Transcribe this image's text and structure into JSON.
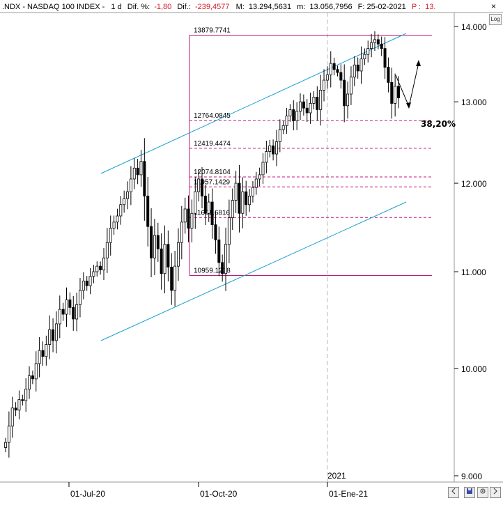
{
  "header": {
    "symbol": ".NDX - NASDAQ 100 INDEX -",
    "period": "1 d",
    "dif_pct_label": "Dif. %:",
    "dif_pct_value": "-1,80",
    "dif_label": "Dif.:",
    "dif_value": "-239,4577",
    "max_label": "M:",
    "max_value": "13.294,5631",
    "min_label": "m:",
    "min_value": "13.056,7956",
    "date_label": "F: 25-02-2021",
    "price_label": "P :",
    "price_value": "13."
  },
  "toolbar": {
    "log_label": "Log",
    "close_glyph": "×",
    "buttons": [
      "save-icon",
      "settings-icon"
    ]
  },
  "colors": {
    "candle": "#000000",
    "channel": "#1aa0d0",
    "fib_line": "#c0177a",
    "grid": "#b8b8b8",
    "header_red": "#d0202a"
  },
  "chart_data": {
    "type": "candlestick",
    "y_axis": {
      "ticks": [
        "14.000",
        "13.000",
        "12.000",
        "11.000",
        "10.000",
        "9.000"
      ],
      "ylim": [
        8950,
        14150
      ],
      "scale": "log"
    },
    "x_axis": {
      "ticks": [
        "01-Jul-20",
        "01-Oct-20",
        "01-Ene-21"
      ],
      "year_marker": "2021"
    },
    "fibonacci": {
      "high": 13879.7741,
      "low": 10959.1208,
      "levels": [
        {
          "label": "13879.7741",
          "value": 13879.7741
        },
        {
          "label": "12764.0845",
          "value": 12764.0845
        },
        {
          "label": "12419.4474",
          "value": 12419.4474
        },
        {
          "label": "12074.8104",
          "value": 12074.8104
        },
        {
          "label": "11957.1429",
          "value": 11957.1429
        },
        {
          "label": "11601.6816",
          "value": 11601.6816
        },
        {
          "label": "10959.1208",
          "value": 10959.1208
        }
      ],
      "highlight_pct": "38,20%"
    },
    "closes": [
      9300,
      9450,
      9620,
      9600,
      9700,
      9690,
      9800,
      9930,
      9900,
      10050,
      10180,
      10120,
      10240,
      10390,
      10280,
      10450,
      10600,
      10550,
      10700,
      10620,
      10500,
      10650,
      10800,
      10900,
      10850,
      10950,
      11000,
      11060,
      11020,
      11150,
      11320,
      11480,
      11550,
      11620,
      11750,
      11820,
      11900,
      12050,
      12180,
      12100,
      12260,
      11850,
      11500,
      11150,
      11400,
      11250,
      10980,
      11300,
      11050,
      10800,
      11060,
      11320,
      11550,
      11700,
      11480,
      11650,
      11900,
      12050,
      11850,
      11650,
      11780,
      11520,
      11350,
      11100,
      10980,
      11300,
      11600,
      11800,
      12000,
      11650,
      11900,
      11750,
      11850,
      11950,
      12050,
      12100,
      12250,
      12380,
      12450,
      12350,
      12500,
      12650,
      12700,
      12820,
      12900,
      12760,
      12880,
      13000,
      12920,
      12860,
      12980,
      13060,
      12900,
      13150,
      13280,
      13350,
      13500,
      13420,
      13380,
      13280,
      12950,
      13100,
      13320,
      13480,
      13400,
      13560,
      13620,
      13700,
      13780,
      13820,
      13760,
      13700,
      13450,
      13250,
      12980,
      13200,
      13050
    ]
  }
}
